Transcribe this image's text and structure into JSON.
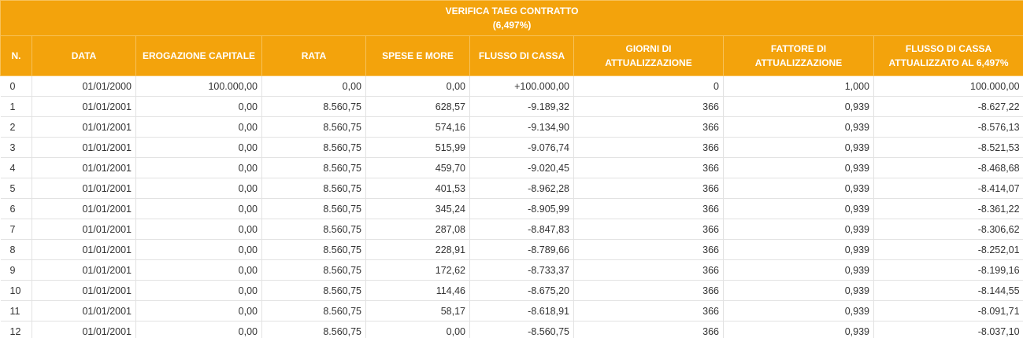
{
  "table": {
    "title_line1": "VERIFICA TAEG CONTRATTO",
    "title_line2": "(6,497%)",
    "headers": {
      "n": "N.",
      "data": "DATA",
      "erogazione": "EROGAZIONE CAPITALE",
      "rata": "RATA",
      "spese": "SPESE E MORE",
      "flusso": "FLUSSO DI CASSA",
      "giorni_l1": "GIORNI DI",
      "giorni_l2": "ATTUALIZZAZIONE",
      "fattore_l1": "FATTORE DI",
      "fattore_l2": "ATTUALIZZAZIONE",
      "attualizzato_l1": "FLUSSO DI CASSA",
      "attualizzato_l2": "ATTUALIZZATO AL 6,497%"
    },
    "rows": [
      {
        "n": "0",
        "data": "01/01/2000",
        "erogazione": "100.000,00",
        "rata": "0,00",
        "spese": "0,00",
        "flusso": "+100.000,00",
        "giorni": "0",
        "fattore": "1,000",
        "attualizzato": "100.000,00"
      },
      {
        "n": "1",
        "data": "01/01/2001",
        "erogazione": "0,00",
        "rata": "8.560,75",
        "spese": "628,57",
        "flusso": "-9.189,32",
        "giorni": "366",
        "fattore": "0,939",
        "attualizzato": "-8.627,22"
      },
      {
        "n": "2",
        "data": "01/01/2001",
        "erogazione": "0,00",
        "rata": "8.560,75",
        "spese": "574,16",
        "flusso": "-9.134,90",
        "giorni": "366",
        "fattore": "0,939",
        "attualizzato": "-8.576,13"
      },
      {
        "n": "3",
        "data": "01/01/2001",
        "erogazione": "0,00",
        "rata": "8.560,75",
        "spese": "515,99",
        "flusso": "-9.076,74",
        "giorni": "366",
        "fattore": "0,939",
        "attualizzato": "-8.521,53"
      },
      {
        "n": "4",
        "data": "01/01/2001",
        "erogazione": "0,00",
        "rata": "8.560,75",
        "spese": "459,70",
        "flusso": "-9.020,45",
        "giorni": "366",
        "fattore": "0,939",
        "attualizzato": "-8.468,68"
      },
      {
        "n": "5",
        "data": "01/01/2001",
        "erogazione": "0,00",
        "rata": "8.560,75",
        "spese": "401,53",
        "flusso": "-8.962,28",
        "giorni": "366",
        "fattore": "0,939",
        "attualizzato": "-8.414,07"
      },
      {
        "n": "6",
        "data": "01/01/2001",
        "erogazione": "0,00",
        "rata": "8.560,75",
        "spese": "345,24",
        "flusso": "-8.905,99",
        "giorni": "366",
        "fattore": "0,939",
        "attualizzato": "-8.361,22"
      },
      {
        "n": "7",
        "data": "01/01/2001",
        "erogazione": "0,00",
        "rata": "8.560,75",
        "spese": "287,08",
        "flusso": "-8.847,83",
        "giorni": "366",
        "fattore": "0,939",
        "attualizzato": "-8.306,62"
      },
      {
        "n": "8",
        "data": "01/01/2001",
        "erogazione": "0,00",
        "rata": "8.560,75",
        "spese": "228,91",
        "flusso": "-8.789,66",
        "giorni": "366",
        "fattore": "0,939",
        "attualizzato": "-8.252,01"
      },
      {
        "n": "9",
        "data": "01/01/2001",
        "erogazione": "0,00",
        "rata": "8.560,75",
        "spese": "172,62",
        "flusso": "-8.733,37",
        "giorni": "366",
        "fattore": "0,939",
        "attualizzato": "-8.199,16"
      },
      {
        "n": "10",
        "data": "01/01/2001",
        "erogazione": "0,00",
        "rata": "8.560,75",
        "spese": "114,46",
        "flusso": "-8.675,20",
        "giorni": "366",
        "fattore": "0,939",
        "attualizzato": "-8.144,55"
      },
      {
        "n": "11",
        "data": "01/01/2001",
        "erogazione": "0,00",
        "rata": "8.560,75",
        "spese": "58,17",
        "flusso": "-8.618,91",
        "giorni": "366",
        "fattore": "0,939",
        "attualizzato": "-8.091,71"
      },
      {
        "n": "12",
        "data": "01/01/2001",
        "erogazione": "0,00",
        "rata": "8.560,75",
        "spese": "0,00",
        "flusso": "-8.560,75",
        "giorni": "366",
        "fattore": "0,939",
        "attualizzato": "-8.037,10"
      }
    ]
  },
  "colors": {
    "header_bg": "#f3a30c",
    "header_text": "#ffffff",
    "grid_line": "#e2e2e2",
    "cell_text": "#333333"
  }
}
